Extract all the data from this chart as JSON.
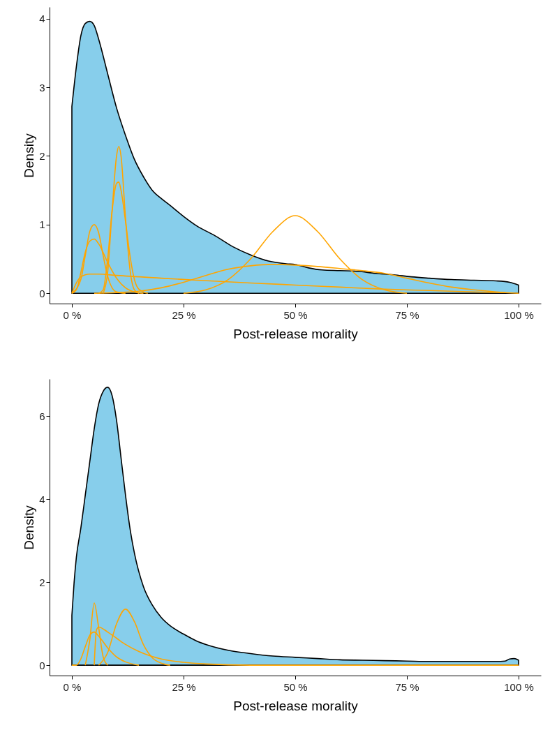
{
  "chart_data": [
    {
      "type": "area",
      "xlabel": "Post-release morality",
      "ylabel": "Density",
      "xlim": [
        -5,
        105
      ],
      "ylim": [
        -0.15,
        4.17
      ],
      "xticks": [
        {
          "value": 0,
          "label": "0 %"
        },
        {
          "value": 25,
          "label": "25 %"
        },
        {
          "value": 50,
          "label": "50 %"
        },
        {
          "value": 75,
          "label": "75 %"
        },
        {
          "value": 100,
          "label": "100 %"
        }
      ],
      "yticks": [
        0,
        1,
        2,
        3,
        4
      ],
      "grid": false,
      "series": [
        {
          "type": "area",
          "color": "#87ceeb",
          "x": [
            0,
            1,
            2,
            3,
            4,
            5,
            6,
            8,
            10,
            12,
            14,
            16,
            18,
            20,
            22,
            25,
            28,
            32,
            36,
            40,
            44,
            48,
            50,
            53,
            56,
            60,
            64,
            68,
            72,
            76,
            80,
            85,
            90,
            95,
            98,
            100
          ],
          "values": [
            2.72,
            3.3,
            3.75,
            3.93,
            3.96,
            3.9,
            3.7,
            3.2,
            2.7,
            2.3,
            1.95,
            1.7,
            1.5,
            1.38,
            1.28,
            1.12,
            0.98,
            0.84,
            0.68,
            0.56,
            0.47,
            0.43,
            0.42,
            0.37,
            0.34,
            0.33,
            0.32,
            0.29,
            0.27,
            0.24,
            0.22,
            0.2,
            0.19,
            0.18,
            0.16,
            0.12
          ]
        },
        {
          "type": "line",
          "color": "#ffa500",
          "x": [
            0,
            2,
            3,
            4,
            5,
            6,
            7,
            8,
            9,
            10,
            12
          ],
          "values": [
            0,
            0.2,
            0.55,
            0.9,
            1.0,
            0.88,
            0.55,
            0.25,
            0.08,
            0.02,
            0
          ]
        },
        {
          "type": "line",
          "color": "#ffa500",
          "x": [
            0,
            1,
            2,
            3,
            4,
            5,
            6,
            8,
            10,
            12,
            14,
            16
          ],
          "values": [
            0,
            0.05,
            0.3,
            0.6,
            0.76,
            0.79,
            0.72,
            0.45,
            0.22,
            0.08,
            0.02,
            0
          ]
        },
        {
          "type": "line",
          "color": "#ffa500",
          "x": [
            7,
            8,
            9,
            10,
            10.5,
            11,
            12,
            13,
            14,
            15
          ],
          "values": [
            0,
            0.3,
            1.2,
            2.0,
            2.14,
            2.0,
            1.1,
            0.35,
            0.05,
            0
          ]
        },
        {
          "type": "line",
          "color": "#ffa500",
          "x": [
            6,
            7,
            8,
            9,
            10,
            10.5,
            11,
            12,
            13,
            14,
            15,
            17
          ],
          "values": [
            0,
            0.05,
            0.5,
            1.2,
            1.6,
            1.62,
            1.5,
            1.05,
            0.55,
            0.2,
            0.06,
            0
          ]
        },
        {
          "type": "line",
          "color": "#ffa500",
          "x": [
            0,
            1,
            2,
            4,
            6,
            10,
            20,
            28,
            40,
            50,
            60,
            70,
            80,
            90,
            97
          ],
          "values": [
            0,
            0.15,
            0.24,
            0.28,
            0.28,
            0.26,
            0.22,
            0.19,
            0.15,
            0.12,
            0.09,
            0.06,
            0.04,
            0.02,
            0.01
          ]
        },
        {
          "type": "line",
          "color": "#ffa500",
          "x": [
            5,
            10,
            15,
            20,
            25,
            30,
            35,
            40,
            45,
            50,
            55,
            60,
            65,
            70,
            75,
            80,
            85,
            90,
            95,
            100
          ],
          "values": [
            0,
            0.01,
            0.03,
            0.08,
            0.16,
            0.26,
            0.35,
            0.4,
            0.42,
            0.41,
            0.39,
            0.36,
            0.33,
            0.29,
            0.22,
            0.15,
            0.09,
            0.05,
            0.02,
            0
          ]
        },
        {
          "type": "line",
          "color": "#ffa500",
          "x": [
            25,
            30,
            35,
            40,
            45,
            50,
            55,
            60,
            65,
            70,
            75
          ],
          "values": [
            0,
            0.05,
            0.2,
            0.5,
            0.9,
            1.13,
            0.9,
            0.5,
            0.2,
            0.05,
            0
          ]
        }
      ]
    },
    {
      "type": "area",
      "xlabel": "Post-release morality",
      "ylabel": "Density",
      "xlim": [
        -5,
        105
      ],
      "ylim": [
        -0.25,
        6.9
      ],
      "xticks": [
        {
          "value": 0,
          "label": "0 %"
        },
        {
          "value": 25,
          "label": "25 %"
        },
        {
          "value": 50,
          "label": "50 %"
        },
        {
          "value": 75,
          "label": "75 %"
        },
        {
          "value": 100,
          "label": "100 %"
        }
      ],
      "yticks": [
        0,
        2,
        4,
        6
      ],
      "grid": false,
      "series": [
        {
          "type": "area",
          "color": "#87ceeb",
          "x": [
            0,
            0.5,
            1,
            2,
            3,
            4,
            5,
            6,
            7,
            8,
            9,
            10,
            11,
            12,
            13,
            14,
            16,
            18,
            20,
            22,
            25,
            28,
            30,
            35,
            40,
            45,
            50,
            55,
            60,
            65,
            70,
            75,
            80,
            85,
            90,
            95,
            97,
            98,
            99,
            100
          ],
          "values": [
            1.2,
            2.0,
            2.6,
            3.3,
            4.1,
            4.9,
            5.7,
            6.3,
            6.6,
            6.7,
            6.5,
            5.9,
            5.0,
            4.1,
            3.3,
            2.7,
            1.9,
            1.45,
            1.15,
            0.95,
            0.75,
            0.58,
            0.5,
            0.36,
            0.28,
            0.22,
            0.19,
            0.16,
            0.13,
            0.12,
            0.11,
            0.1,
            0.09,
            0.09,
            0.09,
            0.09,
            0.1,
            0.15,
            0.16,
            0.12
          ]
        },
        {
          "type": "line",
          "color": "#ffa500",
          "x": [
            3,
            4,
            5,
            6,
            7,
            8
          ],
          "values": [
            0,
            0.6,
            1.5,
            0.9,
            0.2,
            0
          ]
        },
        {
          "type": "line",
          "color": "#ffa500",
          "x": [
            0,
            1,
            2,
            3,
            4,
            5,
            6,
            8,
            10,
            12,
            15
          ],
          "values": [
            0,
            0,
            0.15,
            0.45,
            0.72,
            0.8,
            0.7,
            0.42,
            0.2,
            0.08,
            0
          ]
        },
        {
          "type": "line",
          "color": "#ffa500",
          "x": [
            5,
            5.5,
            6,
            8,
            10,
            12,
            15,
            20,
            25,
            30,
            40,
            100
          ],
          "values": [
            0,
            0.85,
            0.92,
            0.8,
            0.65,
            0.5,
            0.33,
            0.15,
            0.07,
            0.03,
            0,
            0
          ]
        },
        {
          "type": "line",
          "color": "#ffa500",
          "x": [
            6,
            8,
            10,
            12,
            14,
            16,
            18,
            20,
            22
          ],
          "values": [
            0,
            0.3,
            1.0,
            1.35,
            1.05,
            0.5,
            0.18,
            0.05,
            0
          ]
        }
      ]
    }
  ]
}
